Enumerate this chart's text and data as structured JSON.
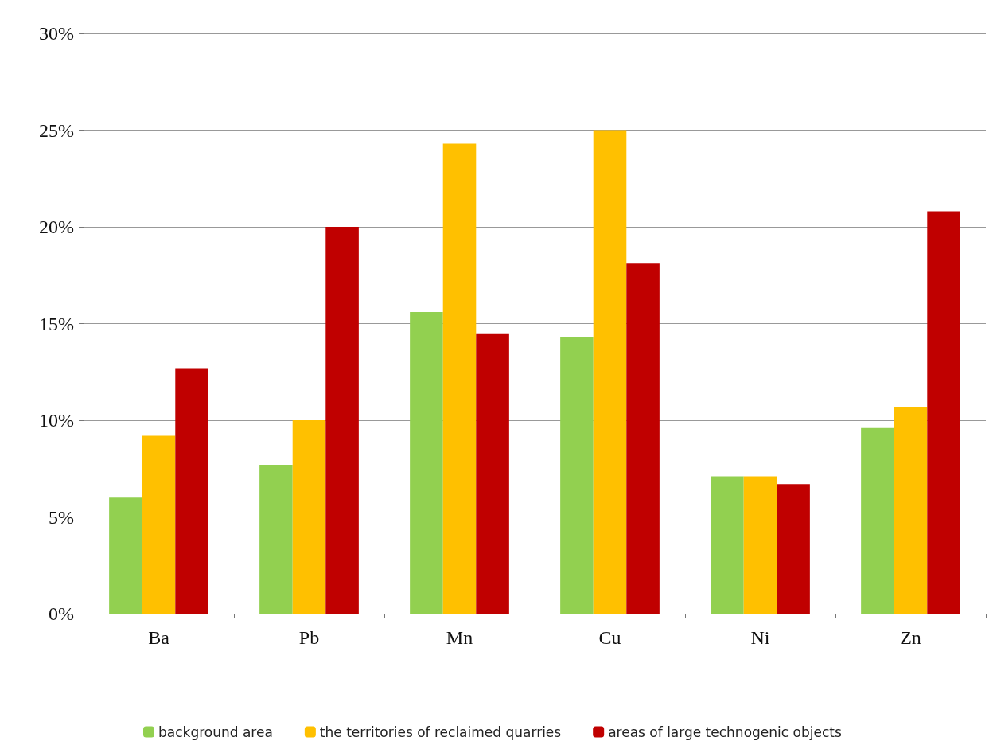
{
  "chart_data": {
    "type": "bar",
    "categories": [
      "Ba",
      "Pb",
      "Mn",
      "Cu",
      "Ni",
      "Zn"
    ],
    "series": [
      {
        "name": "background area",
        "color": "#92d050",
        "values": [
          6.0,
          7.7,
          15.6,
          14.3,
          7.1,
          9.6
        ]
      },
      {
        "name": "the territories of reclaimed quarries",
        "color": "#ffc000",
        "values": [
          9.2,
          10.0,
          24.3,
          25.0,
          7.1,
          10.7
        ]
      },
      {
        "name": "areas of large technogenic objects",
        "color": "#c00000",
        "values": [
          12.7,
          20.0,
          14.5,
          18.1,
          6.7,
          20.8
        ]
      }
    ],
    "ylim": [
      0,
      30
    ],
    "yticks": [
      {
        "value": 0,
        "label": "0%"
      },
      {
        "value": 5,
        "label": "5%"
      },
      {
        "value": 10,
        "label": "10%"
      },
      {
        "value": 15,
        "label": "15%"
      },
      {
        "value": 20,
        "label": "20%"
      },
      {
        "value": 25,
        "label": "25%"
      },
      {
        "value": 30,
        "label": "30%"
      }
    ],
    "grid": "y",
    "legend": "bottom"
  }
}
